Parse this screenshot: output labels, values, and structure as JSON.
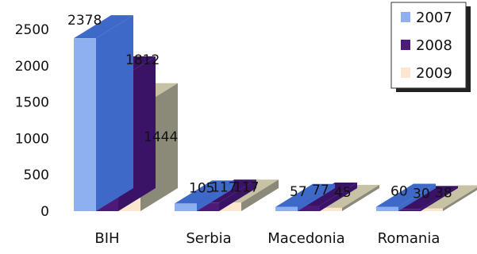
{
  "chart_data": {
    "type": "bar",
    "style": "3d",
    "categories": [
      "BIH",
      "Serbia",
      "Macedonia",
      "Romania"
    ],
    "series": [
      {
        "name": "2007",
        "values": [
          2378,
          105,
          57,
          60
        ],
        "color": "#8fb0f0"
      },
      {
        "name": "2008",
        "values": [
          1812,
          117,
          77,
          30
        ],
        "color": "#4c1a78"
      },
      {
        "name": "2009",
        "values": [
          1444,
          117,
          45,
          38
        ],
        "color": "#fde6cf"
      }
    ],
    "data_labels": [
      [
        "2378",
        "105",
        "57",
        "60"
      ],
      [
        "1812",
        "117",
        "77",
        "30"
      ],
      [
        "1444",
        "117",
        "45",
        "38"
      ]
    ],
    "y_ticks": [
      "0",
      "500",
      "1000",
      "1500",
      "2000",
      "2500"
    ],
    "ylim": [
      0,
      2500
    ],
    "grid": false,
    "legend_position": "top-right",
    "colors": {
      "front": [
        "#8fb0f0",
        "#4c1a78",
        "#fde6cf"
      ],
      "top": [
        "#3e69c9",
        "#3b1366",
        "#c7c1a6"
      ],
      "side": [
        "#3e69c9",
        "#3b1366",
        "#8b8a78"
      ]
    }
  }
}
